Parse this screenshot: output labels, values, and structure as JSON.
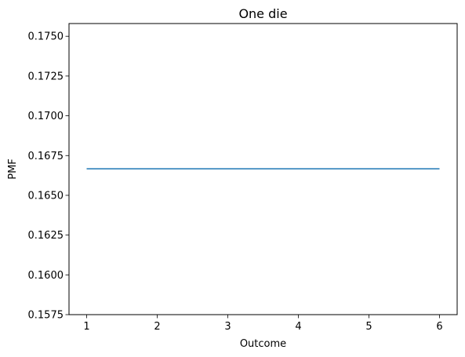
{
  "chart_data": {
    "type": "line",
    "title": "One die",
    "xlabel": "Outcome",
    "ylabel": "PMF",
    "x": [
      1,
      2,
      3,
      4,
      5,
      6
    ],
    "series": [
      {
        "values": [
          0.16667,
          0.16667,
          0.16667,
          0.16667,
          0.16667,
          0.16667
        ],
        "color": "#1f77b4"
      }
    ],
    "xlim": [
      0.75,
      6.25
    ],
    "ylim": [
      0.1575,
      0.1758
    ],
    "xticks": [
      1,
      2,
      3,
      4,
      5,
      6
    ],
    "xtick_labels": [
      "1",
      "2",
      "3",
      "4",
      "5",
      "6"
    ],
    "yticks": [
      0.1575,
      0.16,
      0.1625,
      0.165,
      0.1675,
      0.17,
      0.1725,
      0.175
    ],
    "ytick_labels": [
      "0.1575",
      "0.1600",
      "0.1625",
      "0.1650",
      "0.1675",
      "0.1700",
      "0.1725",
      "0.1750"
    ],
    "grid": false,
    "legend": "none"
  }
}
